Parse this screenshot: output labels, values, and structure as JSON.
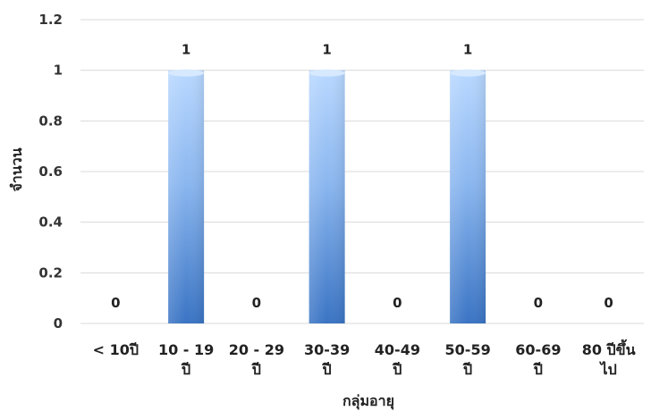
{
  "chart_data": {
    "type": "bar",
    "categories": [
      [
        "< 10ปี"
      ],
      [
        "10 - 19",
        "ปี"
      ],
      [
        "20 - 29",
        "ปี"
      ],
      [
        "30-39",
        "ปี"
      ],
      [
        "40-49",
        "ปี"
      ],
      [
        "50-59",
        "ปี"
      ],
      [
        "60-69",
        "ปี"
      ],
      [
        "80 ปีขึ้น",
        "ไป"
      ]
    ],
    "values": [
      0,
      1,
      0,
      1,
      0,
      1,
      0,
      0
    ],
    "data_labels": [
      "0",
      "1",
      "0",
      "1",
      "0",
      "1",
      "0",
      "0"
    ],
    "title": "",
    "xlabel": "กลุ่มอายุ",
    "ylabel": "จำนวน",
    "ylim": [
      0,
      1.2
    ],
    "yticks": [
      0,
      0.2,
      0.4,
      0.6,
      0.8,
      1,
      1.2
    ],
    "ytick_labels": [
      "0",
      "0.2",
      "0.4",
      "0.6",
      "0.8",
      "1",
      "1.2"
    ],
    "grid": true,
    "legend": "none",
    "colors": {
      "bar_light": "#a9cdfb",
      "bar_dark": "#3a74c4",
      "grid": "#d9d9d9"
    }
  }
}
